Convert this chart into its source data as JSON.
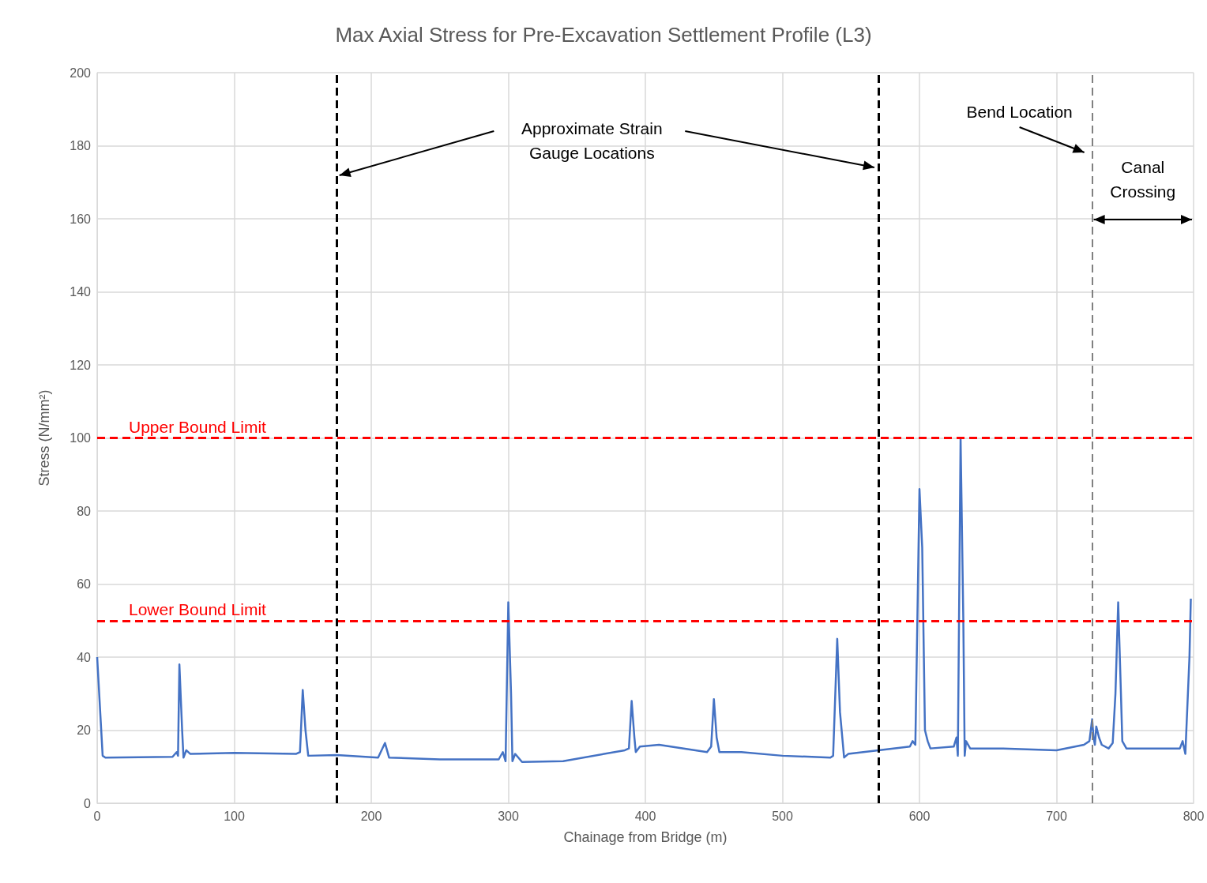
{
  "chart_data": {
    "type": "line",
    "title": "Max Axial Stress for Pre-Excavation Settlement Profile (L3)",
    "xlabel": "Chainage from Bridge (m)",
    "ylabel": "Stress (N/mm²)",
    "xlim": [
      0,
      800
    ],
    "xticks": [
      0,
      100,
      200,
      300,
      400,
      500,
      600,
      700,
      800
    ],
    "ylim": [
      0,
      200
    ],
    "yticks": [
      0,
      20,
      40,
      60,
      80,
      100,
      120,
      140,
      160,
      180,
      200
    ],
    "grid": true,
    "marker": "none",
    "line_style": "solid",
    "series": [
      {
        "color": "#4472c4",
        "x": [
          0,
          4,
          6,
          55,
          58,
          59,
          60,
          62,
          63,
          65,
          68,
          100,
          145,
          148,
          150,
          152,
          154,
          175,
          205,
          210,
          213,
          250,
          293,
          296,
          298,
          300,
          302,
          303,
          305,
          310,
          340,
          385,
          388,
          390,
          392,
          393,
          396,
          410,
          445,
          448,
          450,
          452,
          454,
          470,
          500,
          535,
          537,
          540,
          542,
          545,
          548,
          570,
          593,
          595,
          597,
          600,
          602,
          604,
          606,
          608,
          625,
          627,
          628,
          630,
          632,
          633,
          634,
          637,
          660,
          700,
          720,
          724,
          726,
          727,
          728,
          729,
          731,
          733,
          738,
          741,
          743,
          745,
          747,
          748,
          751,
          790,
          792,
          794,
          797,
          798
        ],
        "values": [
          40,
          13,
          12.5,
          12.7,
          14,
          13,
          38,
          20,
          12.5,
          14.5,
          13.5,
          13.8,
          13.5,
          14,
          31,
          20,
          13,
          13.2,
          12.5,
          16.5,
          12.5,
          12,
          12,
          14,
          11.5,
          55,
          30,
          11.5,
          13.5,
          11.3,
          11.5,
          14.5,
          15,
          28,
          18,
          14,
          15.5,
          16,
          14,
          15.5,
          28.5,
          18,
          14,
          14,
          13,
          12.5,
          13,
          45,
          25,
          12.5,
          13.5,
          14.5,
          15.5,
          17,
          16,
          86,
          70,
          20,
          17,
          15,
          15.5,
          18,
          13,
          100,
          50,
          13,
          17,
          15,
          15,
          14.5,
          16,
          17,
          23,
          18,
          16,
          21,
          18,
          16,
          15,
          16.5,
          30,
          55,
          30,
          17,
          15,
          15,
          17,
          13.5,
          40,
          56
        ]
      }
    ],
    "ref_lines": [
      {
        "axis": "y",
        "value": 100,
        "label": "Upper Bound Limit",
        "color": "#ff0000",
        "line_style": "dashed"
      },
      {
        "axis": "y",
        "value": 50,
        "label": "Lower Bound Limit",
        "color": "#ff0000",
        "line_style": "dashed"
      },
      {
        "axis": "x",
        "value": 175,
        "color": "#000000",
        "line_style": "dashed"
      },
      {
        "axis": "x",
        "value": 570,
        "color": "#000000",
        "line_style": "dashed"
      },
      {
        "axis": "x",
        "value": 726,
        "color": "#808080",
        "line_style": "dashed"
      }
    ],
    "annotations": [
      "Approximate Strain Gauge Locations",
      "Bend Location",
      "Canal Crossing"
    ]
  }
}
